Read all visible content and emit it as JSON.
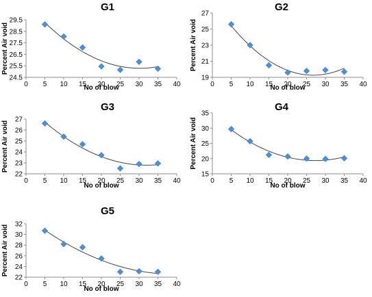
{
  "chart_data": [
    {
      "type": "scatter",
      "title": "G1",
      "xlabel": "No of blow",
      "ylabel": "Percent Air void",
      "x": [
        5,
        10,
        15,
        20,
        25,
        30,
        35
      ],
      "y": [
        29.1,
        28.05,
        27.1,
        25.45,
        25.15,
        25.85,
        25.25
      ],
      "xlim": [
        0,
        40
      ],
      "ylim": [
        24.5,
        29.5
      ],
      "xticks": [
        "0",
        "5",
        "10",
        "15",
        "20",
        "25",
        "30",
        "35",
        "40"
      ],
      "yticks": [
        "24.5",
        "25.5",
        "26.5",
        "27.5",
        "28.5",
        "29.5"
      ],
      "trendline": "polynomial",
      "grid": false,
      "marker_color": "#4a90d9"
    },
    {
      "type": "scatter",
      "title": "G2",
      "xlabel": "No of blow",
      "ylabel": "Percent Air void",
      "x": [
        5,
        10,
        15,
        20,
        25,
        30,
        35
      ],
      "y": [
        25.6,
        23.0,
        20.5,
        19.6,
        19.8,
        19.9,
        19.7
      ],
      "xlim": [
        0,
        40
      ],
      "ylim": [
        19,
        27
      ],
      "xticks": [
        "0",
        "5",
        "10",
        "15",
        "20",
        "25",
        "30",
        "35",
        "40"
      ],
      "yticks": [
        "19",
        "21",
        "23",
        "25",
        "27"
      ],
      "trendline": "polynomial",
      "grid": false,
      "marker_color": "#4a90d9"
    },
    {
      "type": "scatter",
      "title": "G3",
      "xlabel": "No of blow",
      "ylabel": "Percent Air void",
      "x": [
        5,
        10,
        15,
        20,
        25,
        30,
        35
      ],
      "y": [
        26.6,
        25.4,
        24.7,
        23.7,
        22.5,
        22.9,
        22.95
      ],
      "xlim": [
        0,
        40
      ],
      "ylim": [
        22,
        27
      ],
      "xticks": [
        "0",
        "5",
        "10",
        "15",
        "20",
        "25",
        "30",
        "35",
        "40"
      ],
      "yticks": [
        "22",
        "23",
        "24",
        "25",
        "26",
        "27"
      ],
      "trendline": "polynomial",
      "grid": false,
      "marker_color": "#4a90d9"
    },
    {
      "type": "scatter",
      "title": "G4",
      "xlabel": "No of blow",
      "ylabel": "Percent Air void",
      "x": [
        5,
        10,
        15,
        20,
        25,
        30,
        35
      ],
      "y": [
        29.7,
        25.7,
        21.2,
        20.7,
        20.0,
        19.9,
        20.1
      ],
      "xlim": [
        0,
        40
      ],
      "ylim": [
        15,
        35
      ],
      "xticks": [
        "0",
        "5",
        "10",
        "15",
        "20",
        "25",
        "30",
        "35",
        "40"
      ],
      "yticks": [
        "15",
        "20",
        "25",
        "30",
        "35"
      ],
      "trendline": "polynomial",
      "grid": false,
      "marker_color": "#4a90d9"
    },
    {
      "type": "scatter",
      "title": "G5",
      "xlabel": "No of blow",
      "ylabel": "Percent Air void",
      "x": [
        5,
        10,
        15,
        20,
        25,
        30,
        35
      ],
      "y": [
        30.7,
        28.2,
        27.6,
        25.5,
        23.0,
        23.1,
        23.0
      ],
      "xlim": [
        0,
        40
      ],
      "ylim": [
        22,
        32
      ],
      "xticks": [
        "0",
        "5",
        "10",
        "15",
        "20",
        "25",
        "30",
        "35",
        "40"
      ],
      "yticks": [
        "22",
        "24",
        "26",
        "28",
        "30",
        "32"
      ],
      "trendline": "polynomial",
      "grid": false,
      "marker_color": "#4a90d9"
    }
  ]
}
